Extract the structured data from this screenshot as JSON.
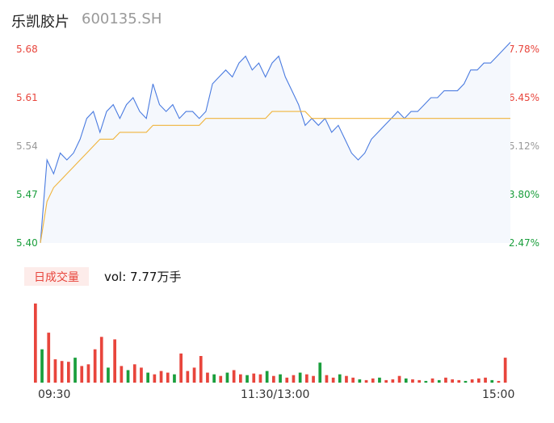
{
  "header": {
    "name": "乐凯胶片",
    "code": "600135.SH"
  },
  "volume_tag": "日成交量",
  "volume_text": "vol: 7.77万手",
  "colors": {
    "up": "#e8453c",
    "down": "#1a9e3c",
    "neutral": "#999999",
    "price_line": "#4a7be0",
    "avg_line": "#f0b43c",
    "area": "#f5f8fd"
  },
  "chart_data": [
    {
      "type": "line",
      "y_ticks_left": [
        "5.68",
        "5.61",
        "5.54",
        "5.47",
        "5.40"
      ],
      "y_ticks_right": [
        "7.78%",
        "6.45%",
        "5.12%",
        "3.80%",
        "2.47%"
      ],
      "ylim": [
        5.4,
        5.68
      ],
      "x_labels": [
        "09:30",
        "11:30/13:00",
        "15:00"
      ],
      "series": [
        {
          "values": [
            5.4,
            5.52,
            5.5,
            5.53,
            5.52,
            5.53,
            5.55,
            5.58,
            5.59,
            5.56,
            5.59,
            5.6,
            5.58,
            5.6,
            5.61,
            5.59,
            5.58,
            5.63,
            5.6,
            5.59,
            5.6,
            5.58,
            5.59,
            5.59,
            5.58,
            5.59,
            5.63,
            5.64,
            5.65,
            5.64,
            5.66,
            5.67,
            5.65,
            5.66,
            5.64,
            5.66,
            5.67,
            5.64,
            5.62,
            5.6,
            5.57,
            5.58,
            5.57,
            5.58,
            5.56,
            5.57,
            5.55,
            5.53,
            5.52,
            5.53,
            5.55,
            5.56,
            5.57,
            5.58,
            5.59,
            5.58,
            5.59,
            5.59,
            5.6,
            5.61,
            5.61,
            5.62,
            5.62,
            5.62,
            5.63,
            5.65,
            5.65,
            5.66,
            5.66,
            5.67,
            5.68,
            5.69
          ]
        },
        {
          "values": [
            5.4,
            5.46,
            5.48,
            5.49,
            5.5,
            5.51,
            5.52,
            5.53,
            5.54,
            5.55,
            5.55,
            5.55,
            5.56,
            5.56,
            5.56,
            5.56,
            5.56,
            5.57,
            5.57,
            5.57,
            5.57,
            5.57,
            5.57,
            5.57,
            5.57,
            5.58,
            5.58,
            5.58,
            5.58,
            5.58,
            5.58,
            5.58,
            5.58,
            5.58,
            5.58,
            5.59,
            5.59,
            5.59,
            5.59,
            5.59,
            5.59,
            5.58,
            5.58,
            5.58,
            5.58,
            5.58,
            5.58,
            5.58,
            5.58,
            5.58,
            5.58,
            5.58,
            5.58,
            5.58,
            5.58,
            5.58,
            5.58,
            5.58,
            5.58,
            5.58,
            5.58,
            5.58,
            5.58,
            5.58,
            5.58,
            5.58,
            5.58,
            5.58,
            5.58,
            5.58,
            5.58,
            5.58
          ]
        }
      ]
    },
    {
      "type": "bar",
      "values": [
        95,
        40,
        60,
        28,
        26,
        25,
        30,
        20,
        22,
        40,
        55,
        18,
        52,
        20,
        15,
        22,
        18,
        12,
        10,
        14,
        12,
        10,
        35,
        14,
        18,
        32,
        12,
        10,
        8,
        12,
        15,
        10,
        9,
        11,
        10,
        14,
        8,
        10,
        6,
        9,
        12,
        10,
        8,
        24,
        9,
        6,
        10,
        8,
        6,
        4,
        3,
        5,
        6,
        3,
        4,
        8,
        5,
        4,
        3,
        2,
        5,
        3,
        6,
        4,
        3,
        2,
        4,
        5,
        6,
        3,
        2,
        30
      ],
      "up": [
        1,
        0,
        1,
        1,
        1,
        1,
        0,
        1,
        1,
        1,
        1,
        0,
        1,
        1,
        0,
        1,
        1,
        0,
        1,
        1,
        1,
        0,
        1,
        1,
        1,
        1,
        1,
        0,
        1,
        0,
        1,
        1,
        0,
        1,
        1,
        0,
        1,
        0,
        1,
        1,
        0,
        1,
        1,
        0,
        1,
        1,
        0,
        1,
        1,
        0,
        1,
        1,
        0,
        1,
        1,
        1,
        0,
        1,
        1,
        0,
        1,
        0,
        1,
        1,
        1,
        0,
        1,
        1,
        1,
        0,
        1,
        1
      ]
    }
  ]
}
